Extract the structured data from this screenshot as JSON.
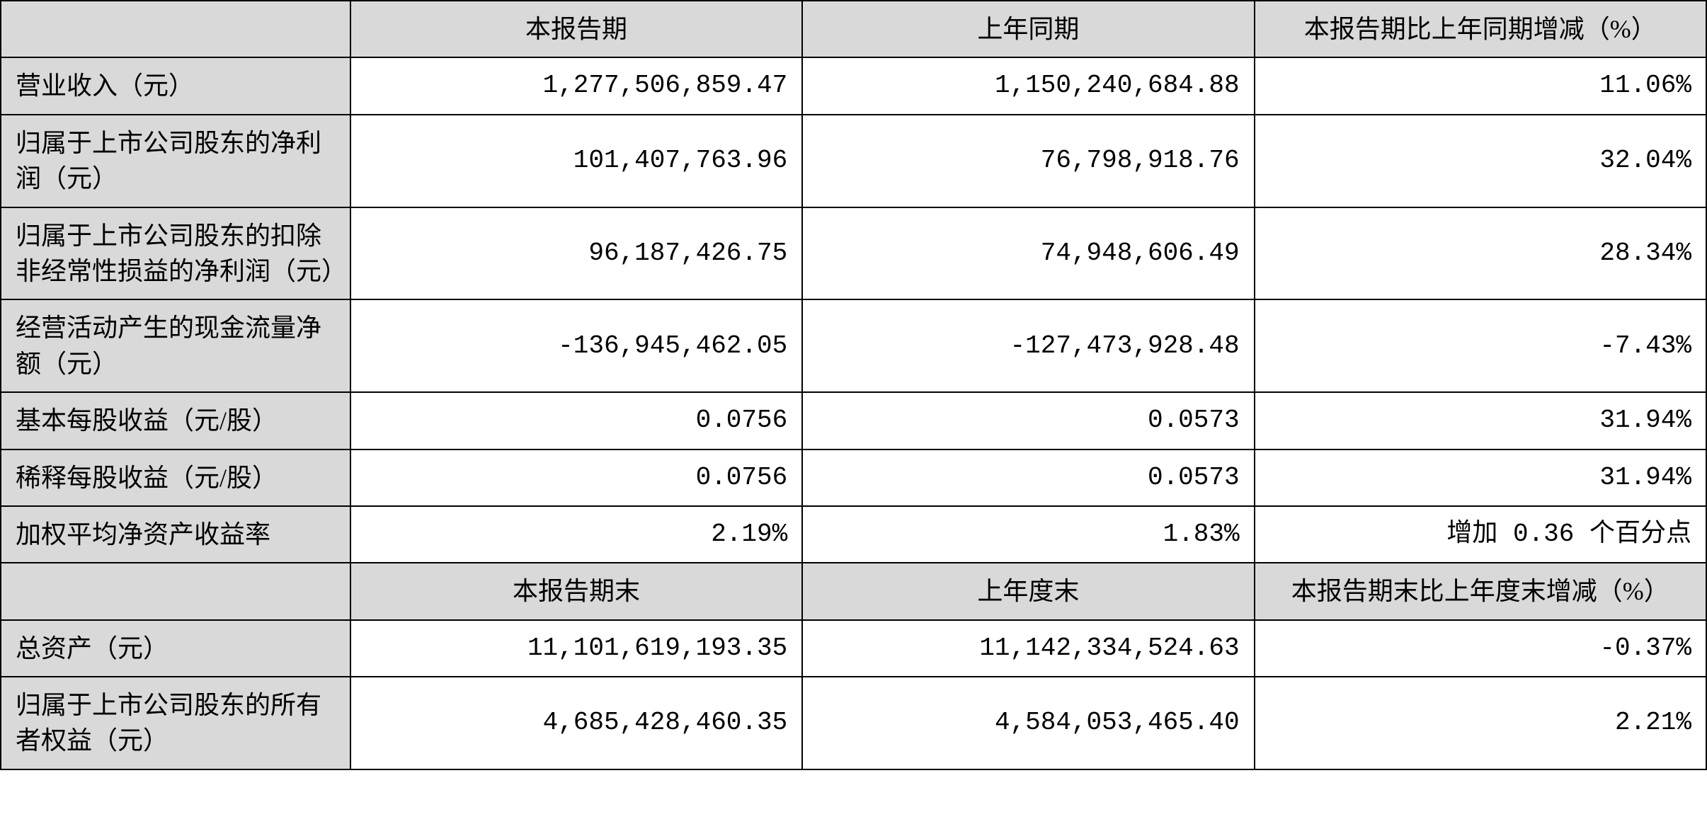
{
  "table": {
    "type": "table",
    "columns": [
      {
        "key": "label",
        "width_pct": 20.5,
        "align": "left",
        "bg": "#d9d9d9"
      },
      {
        "key": "current",
        "width_pct": 26.5,
        "align": "right",
        "bg": "#ffffff"
      },
      {
        "key": "previous",
        "width_pct": 26.5,
        "align": "right",
        "bg": "#ffffff"
      },
      {
        "key": "change",
        "width_pct": 26.5,
        "align": "right",
        "bg": "#ffffff"
      }
    ],
    "colors": {
      "border": "#000000",
      "header_bg": "#d9d9d9",
      "label_bg": "#d9d9d9",
      "value_bg": "#ffffff",
      "text": "#000000"
    },
    "font": {
      "family": "SimSun",
      "size_pt": 28,
      "line_height": 1.4
    },
    "header1": {
      "blank": "",
      "current": "本报告期",
      "previous": "上年同期",
      "change": "本报告期比上年同期增减（%）"
    },
    "rows1": [
      {
        "label": "营业收入（元）",
        "current": "1,277,506,859.47",
        "previous": "1,150,240,684.88",
        "change": "11.06%"
      },
      {
        "label": "归属于上市公司股东的净利润（元）",
        "current": "101,407,763.96",
        "previous": "76,798,918.76",
        "change": "32.04%"
      },
      {
        "label": "归属于上市公司股东的扣除非经常性损益的净利润（元）",
        "current": "96,187,426.75",
        "previous": "74,948,606.49",
        "change": "28.34%"
      },
      {
        "label": "经营活动产生的现金流量净额（元）",
        "current": "-136,945,462.05",
        "previous": "-127,473,928.48",
        "change": "-7.43%"
      },
      {
        "label": "基本每股收益（元/股）",
        "current": "0.0756",
        "previous": "0.0573",
        "change": "31.94%"
      },
      {
        "label": "稀释每股收益（元/股）",
        "current": "0.0756",
        "previous": "0.0573",
        "change": "31.94%"
      },
      {
        "label": "加权平均净资产收益率",
        "current": "2.19%",
        "previous": "1.83%",
        "change": "增加 0.36 个百分点"
      }
    ],
    "header2": {
      "blank": "",
      "current": "本报告期末",
      "previous": "上年度末",
      "change": "本报告期末比上年度末增减（%）"
    },
    "rows2": [
      {
        "label": "总资产（元）",
        "current": "11,101,619,193.35",
        "previous": "11,142,334,524.63",
        "change": "-0.37%"
      },
      {
        "label": "归属于上市公司股东的所有者权益（元）",
        "current": "4,685,428,460.35",
        "previous": "4,584,053,465.40",
        "change": "2.21%"
      }
    ]
  }
}
